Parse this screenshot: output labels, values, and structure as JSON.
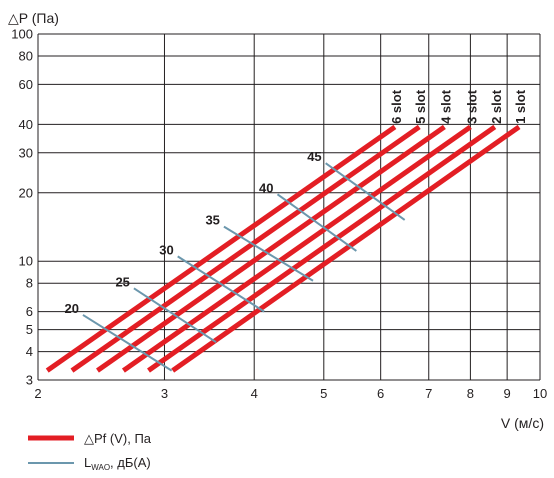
{
  "chart_data": {
    "type": "line",
    "scale": {
      "x": "log",
      "y": "log"
    },
    "ylabel": "△P (Па)",
    "xlabel": "V (м/с)",
    "xlim": [
      2,
      10
    ],
    "ylim": [
      3,
      100
    ],
    "xticks": [
      2,
      3,
      4,
      5,
      6,
      7,
      8,
      9,
      10
    ],
    "yticks": [
      3,
      4,
      5,
      6,
      8,
      10,
      20,
      30,
      40,
      60,
      80,
      100
    ],
    "grid": true,
    "colors": {
      "pressure": "#e31e24",
      "noise": "#6b97ad",
      "grid": "#231f20"
    },
    "series": [
      {
        "name": "1 slot",
        "x": [
          3.08,
          9.35
        ],
        "y": [
          3.3,
          39
        ]
      },
      {
        "name": "2 slot",
        "x": [
          2.85,
          8.65
        ],
        "y": [
          3.3,
          39
        ]
      },
      {
        "name": "3 slot",
        "x": [
          2.63,
          8.0
        ],
        "y": [
          3.3,
          39
        ]
      },
      {
        "name": "4 slot",
        "x": [
          2.42,
          7.36
        ],
        "y": [
          3.3,
          39
        ]
      },
      {
        "name": "5 slot",
        "x": [
          2.23,
          6.79
        ],
        "y": [
          3.3,
          39
        ]
      },
      {
        "name": "6 slot",
        "x": [
          2.06,
          6.28
        ],
        "y": [
          3.3,
          39
        ]
      }
    ],
    "noise_lines": [
      {
        "label": "20",
        "x": [
          2.31,
          3.07
        ],
        "y": [
          5.8,
          3.3
        ]
      },
      {
        "label": "25",
        "x": [
          2.72,
          3.54
        ],
        "y": [
          7.6,
          4.4
        ]
      },
      {
        "label": "30",
        "x": [
          3.13,
          4.13
        ],
        "y": [
          10.5,
          6.0
        ]
      },
      {
        "label": "35",
        "x": [
          3.63,
          4.83
        ],
        "y": [
          14.2,
          8.2
        ]
      },
      {
        "label": "40",
        "x": [
          4.31,
          5.55
        ],
        "y": [
          19.7,
          11.1
        ]
      },
      {
        "label": "45",
        "x": [
          5.03,
          6.48
        ],
        "y": [
          27.0,
          15.2
        ]
      }
    ],
    "legend": [
      {
        "key": "pressure",
        "text": "△Pf (V), Па"
      },
      {
        "key": "noise",
        "text": "L",
        "sub": "WAO",
        "tail": ", дБ(А)"
      }
    ],
    "legend_position": "bottom-left"
  }
}
